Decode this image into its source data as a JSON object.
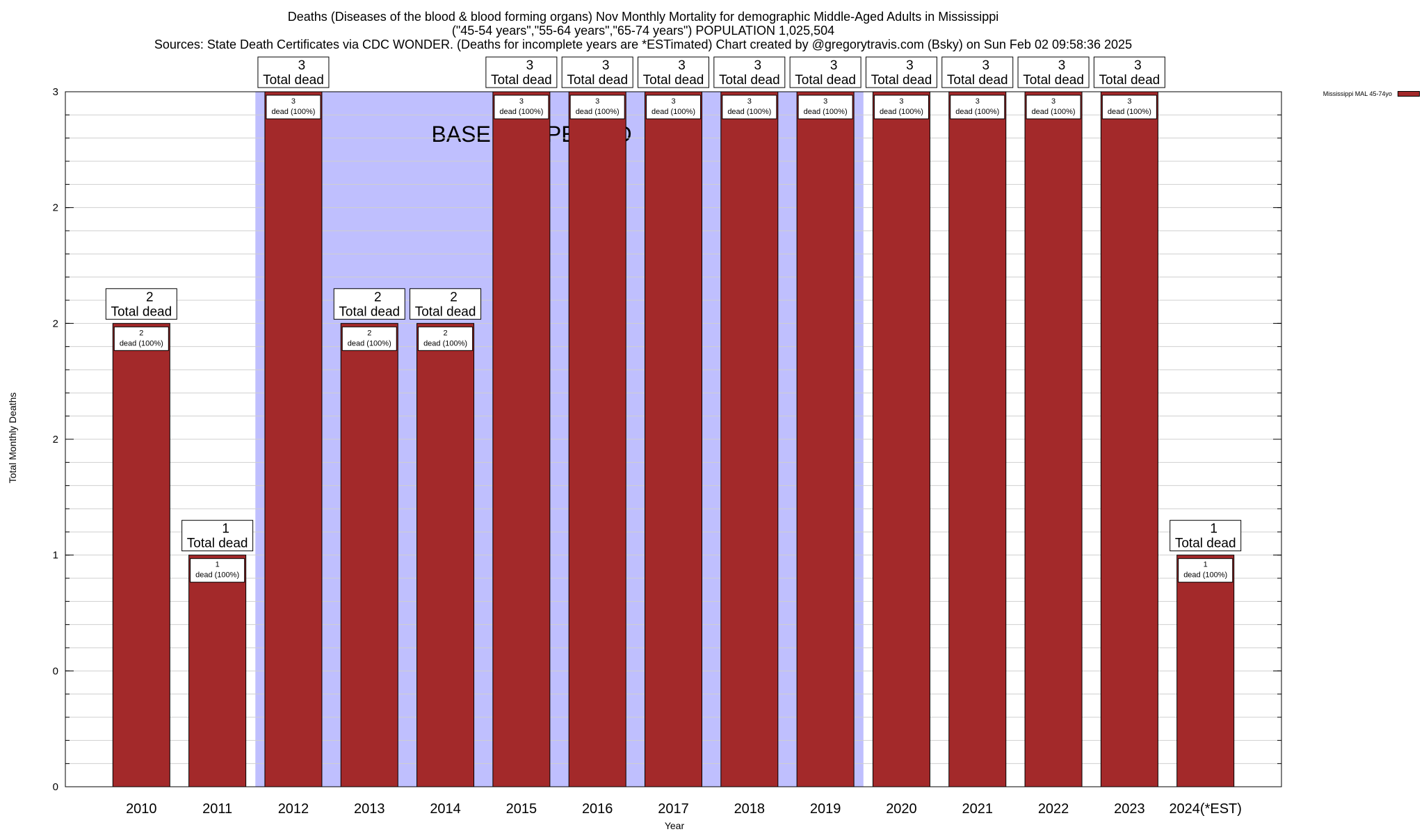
{
  "title": {
    "line1": "Deaths (Diseases of the blood & blood forming organs) Nov Monthly Mortality for demographic Middle-Aged Adults in Mississippi",
    "line2": "(\"45-54 years\",\"55-64 years\",\"65-74 years\") POPULATION 1,025,504",
    "line3": "Sources: State Death Certificates via CDC WONDER. (Deaths for incomplete years are *ESTimated)              Chart created by @gregorytravis.com (Bsky) on Sun Feb 02 09:58:36 2025"
  },
  "chart_data": {
    "type": "bar",
    "xlabel": "Year",
    "ylabel": "Total Monthly Deaths",
    "categories": [
      "2010",
      "2011",
      "2012",
      "2013",
      "2014",
      "2015",
      "2016",
      "2017",
      "2018",
      "2019",
      "2020",
      "2021",
      "2022",
      "2023",
      "2024(*EST)"
    ],
    "series": [
      {
        "name": "Mississippi MAL 45-74yo",
        "values": [
          2,
          1,
          3,
          2,
          2,
          3,
          3,
          3,
          3,
          3,
          3,
          3,
          3,
          3,
          1
        ],
        "color": "#a3292a"
      }
    ],
    "ylim": [
      0,
      3
    ],
    "yticks": [
      0,
      0.5,
      1,
      1.5,
      2,
      2.5,
      3
    ],
    "ytick_labels": [
      "0",
      "0",
      "1",
      "2",
      "2",
      "2",
      "3"
    ],
    "grid": true,
    "legend_position": "top-right",
    "total_label_word": "Total dead",
    "inner_label_suffix": "dead (100%)",
    "baseline_period": {
      "label": "BASELINE PERIOD",
      "start": "2012",
      "end": "2019",
      "color": "#bfbffe"
    }
  }
}
